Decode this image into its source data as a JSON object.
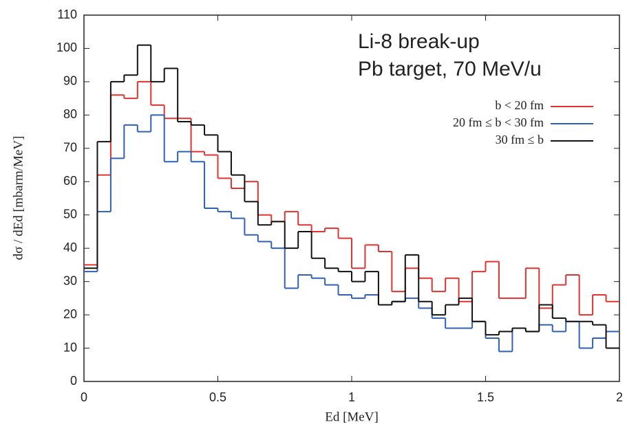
{
  "chart_data": {
    "type": "step-histogram",
    "title_lines": [
      "Li-8 break-up",
      "Pb target, 70 MeV/u"
    ],
    "x_label": "Ed [MeV]",
    "y_label": "dσ / dEd [mbarm/MeV]",
    "bins": [
      0,
      0.05,
      0.1,
      0.15,
      0.2,
      0.25,
      0.3,
      0.35,
      0.4,
      0.45,
      0.5,
      0.55,
      0.6,
      0.65,
      0.7,
      0.75,
      0.8,
      0.85,
      0.9,
      0.95,
      1,
      1.05,
      1.1,
      1.15,
      1.2,
      1.25,
      1.3,
      1.35,
      1.4,
      1.45,
      1.5,
      1.55,
      1.6,
      1.65,
      1.7,
      1.75,
      1.8,
      1.85,
      1.9,
      1.95,
      2
    ],
    "series": [
      {
        "name": "b < 20 fm",
        "color": "#e0322f",
        "values": [
          35,
          62,
          86,
          85,
          90,
          83,
          79,
          79,
          69,
          68,
          61,
          58,
          60,
          50,
          48,
          51,
          47,
          45,
          46,
          43,
          34,
          41,
          39,
          27,
          34,
          31,
          27,
          31,
          24,
          33,
          36,
          25,
          25,
          34,
          22,
          29,
          32,
          20,
          26,
          24
        ]
      },
      {
        "name": "20 fm ≤ b < 30 fm",
        "color": "#2f5fb8",
        "values": [
          33,
          51,
          67,
          77,
          75,
          80,
          66,
          69,
          66,
          52,
          51,
          49,
          44,
          42,
          40,
          28,
          32,
          31,
          29,
          26,
          25,
          26,
          23,
          24,
          25,
          22,
          19,
          16,
          16,
          18,
          13,
          9,
          16,
          15,
          17,
          15,
          18,
          10,
          13,
          15
        ]
      },
      {
        "name": "30 fm ≤ b",
        "color": "#111111",
        "values": [
          34,
          72,
          90,
          92,
          101,
          90,
          94,
          78,
          77,
          74,
          69,
          62,
          54,
          47,
          48,
          40,
          45,
          37,
          34,
          33,
          30,
          33,
          23,
          24,
          38,
          24,
          20,
          23,
          25,
          18,
          14,
          15,
          16,
          15,
          23,
          19,
          18,
          18,
          17,
          10
        ]
      }
    ],
    "xlim": [
      0,
      2
    ],
    "xticks": [
      0,
      0.5,
      1,
      1.5,
      2
    ],
    "ylim": [
      0,
      110
    ],
    "yticks": [
      0,
      10,
      20,
      30,
      40,
      50,
      60,
      70,
      80,
      90,
      100,
      110
    ],
    "grid": false,
    "legend": "upper-right"
  }
}
